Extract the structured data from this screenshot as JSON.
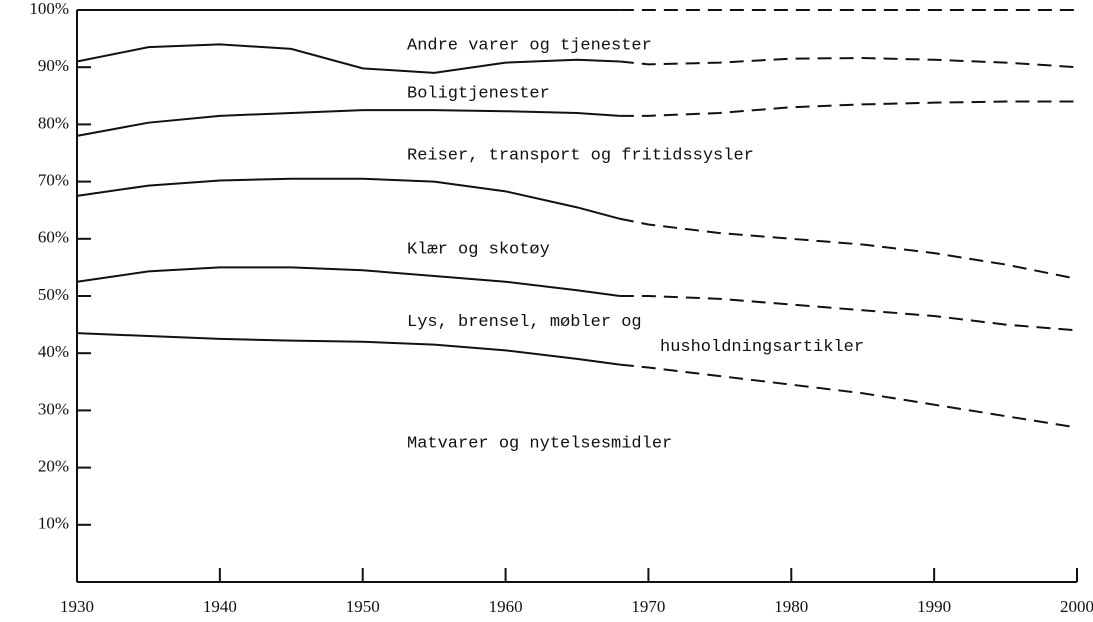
{
  "chart_data": {
    "type": "stacked_line",
    "x": [
      1930,
      1935,
      1940,
      1945,
      1950,
      1955,
      1960,
      1965,
      1968,
      1970,
      1975,
      1980,
      1985,
      1990,
      1995,
      2000
    ],
    "dashed_from_x": 1968,
    "color": "#111111",
    "series": [
      {
        "name": "Matvarer og nytelsesmidler",
        "values": [
          43.5,
          43,
          42.5,
          42.2,
          42,
          41.5,
          40.5,
          39,
          38,
          37.5,
          36,
          34.5,
          33,
          31,
          29,
          27
        ]
      },
      {
        "name": "Lys, brensel, møbler og husholdningsartikler",
        "values": [
          9,
          11.3,
          12.5,
          12.8,
          12.5,
          12,
          12,
          12,
          12,
          12.5,
          13.5,
          14,
          14.5,
          15.5,
          16,
          17
        ]
      },
      {
        "name": "Klær og skotøy",
        "values": [
          15,
          15,
          15.2,
          15.5,
          16,
          16.5,
          15.8,
          14.5,
          13.5,
          12.5,
          11.5,
          11.5,
          11.5,
          11,
          10.5,
          9
        ]
      },
      {
        "name": "Reiser, transport og fritidssysler",
        "values": [
          10.5,
          11,
          11.3,
          11.5,
          12,
          12.5,
          14,
          16.5,
          18,
          19,
          21,
          23,
          24.5,
          26.3,
          28.5,
          31
        ]
      },
      {
        "name": "Boligtjenester",
        "values": [
          13,
          13.2,
          12.5,
          11.2,
          7.3,
          6.5,
          8.5,
          9.3,
          9.5,
          9,
          8.8,
          8.5,
          8.1,
          7.5,
          6.8,
          6
        ]
      },
      {
        "name": "Andre varer og tjenester",
        "values": [
          9,
          6.5,
          6,
          6.8,
          10.2,
          11,
          9.2,
          8.7,
          9,
          9.5,
          9.2,
          8.5,
          8.4,
          8.7,
          9.2,
          10
        ]
      }
    ],
    "xlim": [
      1930,
      2000
    ],
    "xticks": [
      1930,
      1940,
      1950,
      1960,
      1970,
      1980,
      1990,
      2000
    ],
    "ylim": [
      0,
      100
    ],
    "yticks": [
      {
        "value": 10,
        "label": "10%"
      },
      {
        "value": 20,
        "label": "20%"
      },
      {
        "value": 30,
        "label": "30%"
      },
      {
        "value": 40,
        "label": "40%"
      },
      {
        "value": 50,
        "label": "50%"
      },
      {
        "value": 60,
        "label": "60%"
      },
      {
        "value": 70,
        "label": "70%"
      },
      {
        "value": 80,
        "label": "80%"
      },
      {
        "value": 90,
        "label": "90%"
      },
      {
        "value": 100,
        "label": "100%"
      }
    ]
  }
}
